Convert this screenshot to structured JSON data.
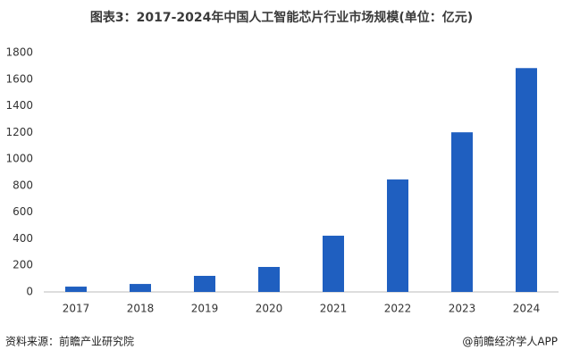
{
  "chart_data": {
    "type": "bar",
    "title": "图表3：2017-2024年中国人工智能芯片行业市场规模(单位：亿元)",
    "categories": [
      "2017",
      "2018",
      "2019",
      "2020",
      "2021",
      "2022",
      "2023",
      "2024"
    ],
    "values": [
      40,
      60,
      121,
      188,
      423,
      846,
      1201,
      1684
    ],
    "color": "#1f5fc0",
    "ylim": [
      0,
      1800
    ],
    "yticks": [
      0,
      200,
      400,
      600,
      800,
      1000,
      1200,
      1400,
      1600,
      1800
    ],
    "grid": false,
    "source": "资料来源：前瞻产业研究院",
    "credit": "@前瞻经济学人APP"
  }
}
